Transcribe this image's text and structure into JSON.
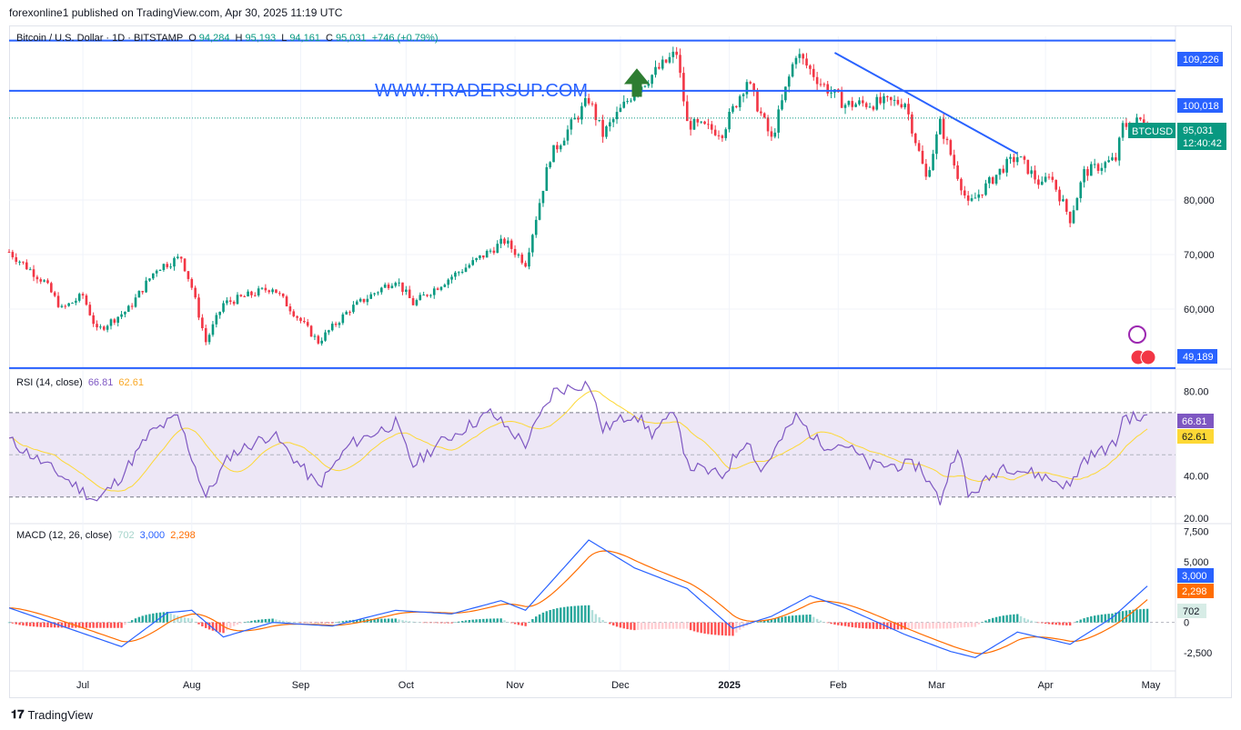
{
  "header": {
    "publisher_line": "forexonline1 published on TradingView.com, Apr 30, 2025 11:19 UTC"
  },
  "legend_main": {
    "symbol": "Bitcoin / U.S. Dollar · 1D · BITSTAMP",
    "o_label": "O",
    "o": "94,284",
    "h_label": "H",
    "h": "95,193",
    "l_label": "L",
    "l": "94,161",
    "c_label": "C",
    "c": "95,031",
    "change": "+746 (+0.79%)"
  },
  "watermark": "WWW.TRADERSUP.COM",
  "price_tag": {
    "symbol": "BTCUSD",
    "price": "95,031",
    "countdown": "12:40:42"
  },
  "legend_rsi": {
    "name": "RSI (14, close)",
    "rsi": "66.81",
    "ma": "62.61"
  },
  "legend_macd": {
    "name": "MACD (12, 26, close)",
    "hist": "702",
    "macd": "3,000",
    "signal": "2,298"
  },
  "footer": {
    "brand": "TradingView"
  },
  "colors": {
    "up": "#089981",
    "down": "#f23645",
    "hline": "#2962ff",
    "rsi": "#7e57c2",
    "rsi_ma": "#fdd835",
    "macd": "#2962ff",
    "signal": "#ff6d00",
    "band": "#ede7f6"
  },
  "chart_data": [
    {
      "type": "candlestick",
      "title": "Bitcoin / U.S. Dollar · 1D · BITSTAMP",
      "x_ticks": [
        "Jul",
        "Aug",
        "Sep",
        "Oct",
        "Nov",
        "Dec",
        "2025",
        "Feb",
        "Mar",
        "Apr",
        "May"
      ],
      "y_ticks": [
        "80,000",
        "70,000",
        "60,000"
      ],
      "ylim": [
        50000,
        110000
      ],
      "horizontal_levels": [
        "109,226",
        "100,018",
        "49,189"
      ],
      "last_price": "95,031",
      "trendline": {
        "from": [
          "Jan 31",
          107000
        ],
        "to": [
          "Mar 24",
          88500
        ]
      },
      "annotations": [
        "green up arrow"
      ],
      "close_path": [
        [
          "Jun 10",
          70500
        ],
        [
          "Jun 20",
          65000
        ],
        [
          "Jun 25",
          60000
        ],
        [
          "Jul 1",
          62500
        ],
        [
          "Jul 5",
          56000
        ],
        [
          "Jul 14",
          60000
        ],
        [
          "Jul 22",
          67500
        ],
        [
          "Jul 29",
          69500
        ],
        [
          "Aug 1",
          64000
        ],
        [
          "Aug 5",
          54000
        ],
        [
          "Aug 10",
          61000
        ],
        [
          "Aug 24",
          64000
        ],
        [
          "Sep 6",
          54000
        ],
        [
          "Sep 15",
          60000
        ],
        [
          "Sep 28",
          65500
        ],
        [
          "Oct 3",
          61000
        ],
        [
          "Oct 14",
          66000
        ],
        [
          "Oct 20",
          68500
        ],
        [
          "Oct 29",
          72500
        ],
        [
          "Nov 4",
          68500
        ],
        [
          "Nov 11",
          88000
        ],
        [
          "Nov 22",
          98500
        ],
        [
          "Nov 26",
          92000
        ],
        [
          "Dec 5",
          100000
        ],
        [
          "Dec 17",
          107000
        ],
        [
          "Dec 20",
          94000
        ],
        [
          "Dec 30",
          92500
        ],
        [
          "Jan 6",
          102000
        ],
        [
          "Jan 13",
          91000
        ],
        [
          "Jan 20",
          107000
        ],
        [
          "Jan 27",
          101500
        ],
        [
          "Feb 3",
          97500
        ],
        [
          "Feb 20",
          98000
        ],
        [
          "Feb 26",
          84000
        ],
        [
          "Mar 2",
          94000
        ],
        [
          "Mar 10",
          79000
        ],
        [
          "Mar 20",
          86000
        ],
        [
          "Mar 24",
          88000
        ],
        [
          "Mar 31",
          82500
        ],
        [
          "Apr 2",
          85000
        ],
        [
          "Apr 8",
          76500
        ],
        [
          "Apr 12",
          85000
        ],
        [
          "Apr 21",
          87500
        ],
        [
          "Apr 23",
          93500
        ],
        [
          "Apr 30",
          95000
        ]
      ]
    },
    {
      "type": "line",
      "title": "RSI (14, close)",
      "y_ticks": [
        "80.00",
        "40.00",
        "20.00"
      ],
      "ylim": [
        20,
        88
      ],
      "band": [
        30,
        70
      ],
      "current": [
        "66.81",
        "62.61"
      ],
      "rsi_path": [
        [
          "Jun 10",
          57
        ],
        [
          "Jun 25",
          40
        ],
        [
          "Jul 5",
          28
        ],
        [
          "Jul 12",
          40
        ],
        [
          "Jul 20",
          60
        ],
        [
          "Jul 28",
          68
        ],
        [
          "Aug 5",
          30
        ],
        [
          "Aug 12",
          50
        ],
        [
          "Aug 24",
          60
        ],
        [
          "Sep 6",
          35
        ],
        [
          "Sep 15",
          55
        ],
        [
          "Sep 28",
          65
        ],
        [
          "Oct 3",
          45
        ],
        [
          "Oct 10",
          55
        ],
        [
          "Oct 20",
          65
        ],
        [
          "Oct 25",
          70
        ],
        [
          "Nov 4",
          55
        ],
        [
          "Nov 12",
          80
        ],
        [
          "Nov 22",
          84
        ],
        [
          "Nov 26",
          62
        ],
        [
          "Dec 5",
          70
        ],
        [
          "Dec 10",
          60
        ],
        [
          "Dec 17",
          70
        ],
        [
          "Dec 20",
          45
        ],
        [
          "Dec 30",
          40
        ],
        [
          "Jan 6",
          58
        ],
        [
          "Jan 10",
          42
        ],
        [
          "Jan 20",
          68
        ],
        [
          "Jan 27",
          55
        ],
        [
          "Feb 3",
          55
        ],
        [
          "Feb 10",
          45
        ],
        [
          "Feb 24",
          45
        ],
        [
          "Mar 2",
          28
        ],
        [
          "Mar 7",
          55
        ],
        [
          "Mar 10",
          30
        ],
        [
          "Mar 20",
          45
        ],
        [
          "Mar 31",
          40
        ],
        [
          "Apr 8",
          35
        ],
        [
          "Apr 12",
          48
        ],
        [
          "Apr 21",
          55
        ],
        [
          "Apr 23",
          68
        ],
        [
          "Apr 30",
          67
        ]
      ]
    },
    {
      "type": "bar",
      "title": "MACD (12, 26, close)",
      "y_ticks": [
        "7,500",
        "5,000",
        "0",
        "-2,500"
      ],
      "ylim": [
        -4000,
        8000
      ],
      "current": [
        "702",
        "3,000",
        "2,298"
      ],
      "macd_path": [
        [
          "Jun 10",
          1200
        ],
        [
          "Jun 25",
          -300
        ],
        [
          "Jul 12",
          -2000
        ],
        [
          "Jul 25",
          800
        ],
        [
          "Aug 1",
          1000
        ],
        [
          "Aug 10",
          -1200
        ],
        [
          "Aug 24",
          0
        ],
        [
          "Sep 10",
          -300
        ],
        [
          "Sep 28",
          1000
        ],
        [
          "Oct 14",
          700
        ],
        [
          "Oct 28",
          1800
        ],
        [
          "Nov 4",
          1000
        ],
        [
          "Nov 22",
          6800
        ],
        [
          "Dec 5",
          4500
        ],
        [
          "Dec 20",
          2800
        ],
        [
          "Jan 2",
          -500
        ],
        [
          "Jan 13",
          500
        ],
        [
          "Jan 24",
          2200
        ],
        [
          "Feb 3",
          1200
        ],
        [
          "Feb 20",
          -1000
        ],
        [
          "Mar 5",
          -2400
        ],
        [
          "Mar 12",
          -2900
        ],
        [
          "Mar 24",
          -800
        ],
        [
          "Apr 8",
          -1800
        ],
        [
          "Apr 20",
          400
        ],
        [
          "Apr 30",
          3000
        ]
      ]
    }
  ]
}
